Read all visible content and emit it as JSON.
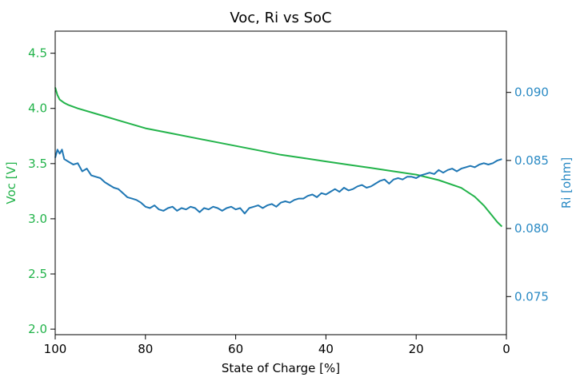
{
  "chart_data": {
    "type": "line",
    "title": "Voc, Ri vs SoC",
    "xlabel": "State of Charge [%]",
    "ylabel": "Voc [V]",
    "ylabel_right": "Ri [ohm]",
    "xlim": [
      100,
      0
    ],
    "ylim": [
      1.95,
      4.7
    ],
    "ylim_right": [
      0.0722,
      0.0945
    ],
    "x_ticks": [
      "100",
      "80",
      "60",
      "40",
      "20",
      "0"
    ],
    "y_ticks": [
      "2.0",
      "2.5",
      "3.0",
      "3.5",
      "4.0",
      "4.5"
    ],
    "y_ticks_right": [
      "0.075",
      "0.080",
      "0.085",
      "0.090"
    ],
    "grid": false,
    "colors": {
      "voc": "#22b34a",
      "ri": "#1f77b4",
      "voc_axis": "#22b34a",
      "ri_axis": "#2a8ac4"
    },
    "series": [
      {
        "name": "Voc",
        "axis": "left",
        "x": [
          100,
          99.5,
          99,
          98,
          97,
          95,
          90,
          85,
          80,
          75,
          70,
          65,
          60,
          55,
          50,
          45,
          40,
          35,
          30,
          25,
          20,
          15,
          10,
          7,
          5,
          3,
          2,
          1
        ],
        "values": [
          4.19,
          4.12,
          4.08,
          4.05,
          4.03,
          4.0,
          3.94,
          3.88,
          3.82,
          3.78,
          3.74,
          3.7,
          3.66,
          3.62,
          3.58,
          3.55,
          3.52,
          3.49,
          3.46,
          3.43,
          3.4,
          3.35,
          3.28,
          3.2,
          3.12,
          3.02,
          2.97,
          2.93
        ]
      },
      {
        "name": "Ri",
        "axis": "right",
        "x": [
          100,
          99.5,
          99,
          98.5,
          98,
          97,
          96,
          95,
          94,
          93,
          92,
          91,
          90,
          89,
          88,
          87,
          86,
          85,
          84,
          83,
          82,
          81,
          80,
          79,
          78,
          77,
          76,
          75,
          74,
          73,
          72,
          71,
          70,
          69,
          68,
          67,
          66,
          65,
          64,
          63,
          62,
          61,
          60,
          59,
          58,
          57,
          56,
          55,
          54,
          53,
          52,
          51,
          50,
          49,
          48,
          47,
          46,
          45,
          44,
          43,
          42,
          41,
          40,
          39,
          38,
          37,
          36,
          35,
          34,
          33,
          32,
          31,
          30,
          29,
          28,
          27,
          26,
          25,
          24,
          23,
          22,
          21,
          20,
          19,
          18,
          17,
          16,
          15,
          14,
          13,
          12,
          11,
          10,
          9,
          8,
          7,
          6,
          5,
          4,
          3,
          2,
          1
        ],
        "values": [
          0.0852,
          0.0858,
          0.0855,
          0.0858,
          0.0851,
          0.0849,
          0.0847,
          0.0848,
          0.0842,
          0.0844,
          0.0839,
          0.0838,
          0.0837,
          0.0834,
          0.0832,
          0.083,
          0.0829,
          0.0826,
          0.0823,
          0.0822,
          0.0821,
          0.0819,
          0.0816,
          0.0815,
          0.0817,
          0.0814,
          0.0813,
          0.0815,
          0.0816,
          0.0813,
          0.0815,
          0.0814,
          0.0816,
          0.0815,
          0.0812,
          0.0815,
          0.0814,
          0.0816,
          0.0815,
          0.0813,
          0.0815,
          0.0816,
          0.0814,
          0.0815,
          0.0811,
          0.0815,
          0.0816,
          0.0817,
          0.0815,
          0.0817,
          0.0818,
          0.0816,
          0.0819,
          0.082,
          0.0819,
          0.0821,
          0.0822,
          0.0822,
          0.0824,
          0.0825,
          0.0823,
          0.0826,
          0.0825,
          0.0827,
          0.0829,
          0.0827,
          0.083,
          0.0828,
          0.0829,
          0.0831,
          0.0832,
          0.083,
          0.0831,
          0.0833,
          0.0835,
          0.0836,
          0.0833,
          0.0836,
          0.0837,
          0.0836,
          0.0838,
          0.0838,
          0.0837,
          0.0839,
          0.084,
          0.0841,
          0.084,
          0.0843,
          0.0841,
          0.0843,
          0.0844,
          0.0842,
          0.0844,
          0.0845,
          0.0846,
          0.0845,
          0.0847,
          0.0848,
          0.0847,
          0.0848,
          0.085,
          0.0851
        ]
      }
    ]
  }
}
